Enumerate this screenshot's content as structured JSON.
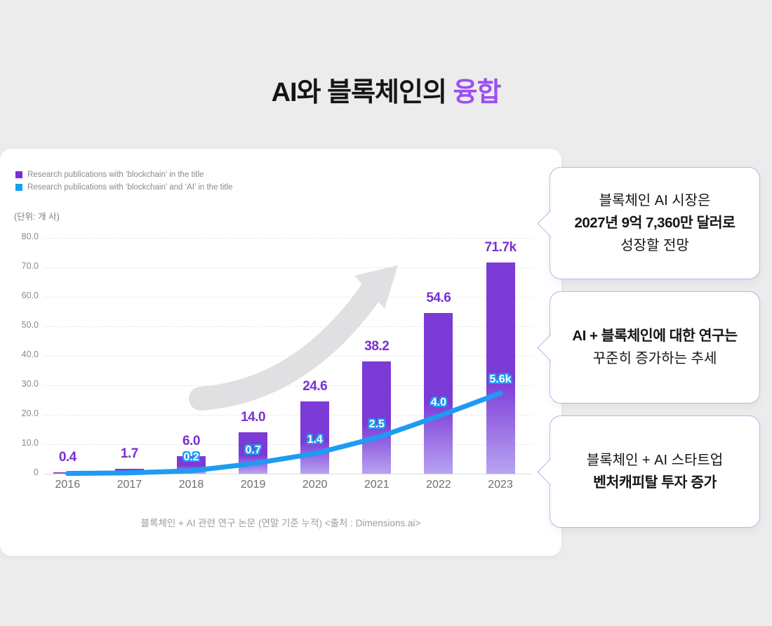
{
  "title": {
    "part1": "AI와 블록체인의 ",
    "part2": "융합"
  },
  "legend": {
    "items": [
      {
        "label": "Research publications with ‘blockchain’ in the title",
        "color": "#7A2ED2"
      },
      {
        "label": "Research publications with ‘blockchain’ and ‘AI’ in the title",
        "color": "#18A0F0"
      }
    ]
  },
  "chart_data": {
    "type": "bar",
    "unit_label": "(단위: 개 사)",
    "categories": [
      "2016",
      "2017",
      "2018",
      "2019",
      "2020",
      "2021",
      "2022",
      "2023"
    ],
    "series": [
      {
        "name": "Research publications with ‘blockchain’ in the title",
        "type": "bar",
        "color_top": "#7C3AD6",
        "color_bottom": "#B7A4F1",
        "values": [
          0.4,
          1.7,
          6.0,
          14.0,
          24.6,
          38.2,
          54.6,
          71.7
        ],
        "labels": [
          "0.4",
          "1.7",
          "6.0",
          "14.0",
          "24.6",
          "38.2",
          "54.6",
          "71.7k"
        ]
      },
      {
        "name": "Research publications with ‘blockchain’ and ‘AI’ in the title",
        "type": "line",
        "color": "#1E9BF3",
        "values": [
          0.02,
          0.06,
          0.2,
          0.7,
          1.4,
          2.5,
          4.0,
          5.6
        ],
        "labels": [
          "",
          "",
          "0.2",
          "0.7",
          "1.4",
          "2.5",
          "4.0",
          "5.6k"
        ]
      }
    ],
    "yticks": [
      "80.0",
      "70.0",
      "60.0",
      "50.0",
      "40.0",
      "30.0",
      "20.0",
      "10.0",
      "0"
    ],
    "ylim": [
      0,
      80
    ],
    "grid": "dashed-horizontal",
    "legend_position": "top-left"
  },
  "caption": "블록체인 + AI 관련 연구 논문 (연말 기준 누적) <출처 : Dimensions.ai>",
  "callouts": [
    {
      "lines": [
        {
          "text": "블록체인 AI 시장은",
          "bold": false
        },
        {
          "text": "2027년 9억 7,360만 달러로",
          "bold": true
        },
        {
          "text": "성장할 전망",
          "bold": false
        }
      ]
    },
    {
      "lines": [
        {
          "text": "AI + 블록체인에 대한 연구는",
          "bold": true
        },
        {
          "text": "꾸준히 증가하는 추세",
          "bold": false
        }
      ]
    },
    {
      "lines": [
        {
          "text": "블록체인 + AI 스타트업",
          "bold": false
        },
        {
          "text": "벤처캐피탈 투자 증가",
          "bold": true
        }
      ]
    }
  ],
  "colors": {
    "accent_purple": "#9B50F2",
    "bar_label_purple": "#7B2FD0",
    "line_blue": "#1E9BF3",
    "background": "#EDECED",
    "callout_border": "#C9ACEC",
    "arrow_gray": "#E0DFE2"
  }
}
